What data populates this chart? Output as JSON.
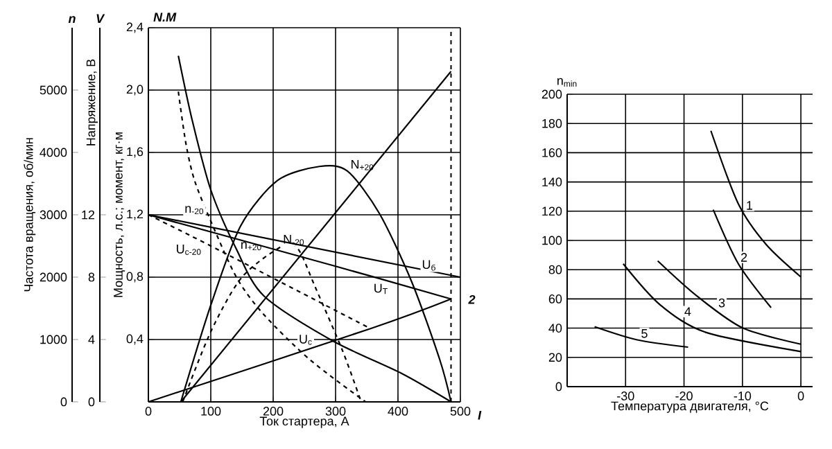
{
  "chart_data": [
    {
      "type": "line",
      "xlabel": "Ток стартера, А",
      "ylabel": "Мощность, л.с.; момент, кг·м",
      "y2label": "Частота вращения, об/мин",
      "y3label": "Напряжение, В",
      "xlim": [
        0,
        500
      ],
      "xticks": [
        0,
        100,
        200,
        300,
        400,
        500
      ],
      "ylim": [
        0,
        2.4
      ],
      "yticks": [
        {
          "value": 0.4,
          "label": "0,4"
        },
        {
          "value": 0.8,
          "label": "0,8"
        },
        {
          "value": 1.2,
          "label": "1,2"
        },
        {
          "value": 1.6,
          "label": "1,6"
        },
        {
          "value": 2.0,
          "label": "2,0"
        },
        {
          "value": 2.4,
          "label": "2,4"
        }
      ],
      "y2lim": [
        0,
        6000
      ],
      "y2ticks": [
        0,
        1000,
        2000,
        3000,
        4000,
        5000
      ],
      "y3lim": [
        0,
        24
      ],
      "y3ticks": [
        0,
        4,
        8,
        12
      ],
      "grid": true,
      "annotations": [
        "n",
        "V",
        "N.M",
        "I",
        "2"
      ],
      "ref_lines": [
        {
          "axis": "x",
          "value": 485,
          "line_style": "dashed"
        }
      ],
      "series": [
        {
          "name": "n$_{-20}$",
          "color": "#000000",
          "line_style": "dashed",
          "x": [
            48,
            60,
            74,
            100,
            141,
            185,
            259,
            348
          ],
          "values": [
            1.99,
            1.66,
            1.42,
            1.16,
            0.8,
            0.56,
            0.27,
            0
          ]
        },
        {
          "name": "n$_{+20}$",
          "color": "#000000",
          "line_style": "solid",
          "x": [
            48,
            70,
            100,
            141,
            185,
            296,
            407,
            485
          ],
          "values": [
            2.22,
            1.81,
            1.36,
            0.98,
            0.68,
            0.39,
            0.18,
            0
          ]
        },
        {
          "name": "N$_{+20}$",
          "color": "#000000",
          "line_style": "solid",
          "x": [
            52,
            100,
            148,
            207,
            274,
            319,
            370,
            422,
            467,
            485
          ],
          "values": [
            0,
            0.62,
            1.13,
            1.42,
            1.51,
            1.48,
            1.21,
            0.77,
            0.27,
            0
          ]
        },
        {
          "name": "N$_{-20}$",
          "color": "#000000",
          "line_style": "dashed",
          "x": [
            55,
            100,
            150,
            215,
            240,
            267,
            311,
            341
          ],
          "values": [
            0,
            0.45,
            0.8,
            1.0,
            0.98,
            0.74,
            0.33,
            0
          ]
        },
        {
          "color": "#000000",
          "line_style": "solid",
          "x": [
            52,
            485
          ],
          "values": [
            0,
            2.12
          ]
        },
        {
          "name": "U$_{c-20}$",
          "color": "#000000",
          "line_style": "dashed",
          "x": [
            0,
            100,
            356
          ],
          "values": [
            1.2,
            1.0,
            0.47
          ]
        },
        {
          "name": "U$_{б}$",
          "color": "#000000",
          "line_style": "solid",
          "x": [
            0,
            500
          ],
          "values": [
            1.2,
            0.8
          ]
        },
        {
          "name": "U$_{Т}$",
          "color": "#000000",
          "line_style": "solid",
          "x": [
            0,
            300,
            485
          ],
          "values": [
            1.2,
            0.87,
            0.66
          ]
        },
        {
          "name": "U$_{c}$",
          "color": "#000000",
          "line_style": "solid",
          "x": [
            0,
            356,
            485
          ],
          "values": [
            0,
            0.47,
            0.66
          ]
        }
      ]
    },
    {
      "type": "line",
      "xlabel": "Температура двигателя, °C",
      "ylabel": "n$_{min}$",
      "xlim": [
        -40,
        2
      ],
      "xticks": [
        -30,
        -20,
        -10,
        0
      ],
      "ylim": [
        0,
        200
      ],
      "yticks": [
        0,
        20,
        40,
        60,
        80,
        100,
        120,
        140,
        160,
        180,
        200
      ],
      "grid": true,
      "series": [
        {
          "name": "1",
          "color": "#000000",
          "line_style": "solid",
          "x": [
            -15.4,
            -10.7,
            -5.9,
            0
          ],
          "values": [
            175,
            125,
            97,
            75
          ]
        },
        {
          "name": "2",
          "color": "#000000",
          "line_style": "solid",
          "x": [
            -15,
            -10.7,
            -5.1
          ],
          "values": [
            121,
            84,
            54
          ]
        },
        {
          "name": "3",
          "color": "#000000",
          "line_style": "solid",
          "x": [
            -24.5,
            -17.8,
            -9.9,
            0
          ],
          "values": [
            86,
            62,
            40,
            29
          ]
        },
        {
          "name": "4",
          "color": "#000000",
          "line_style": "solid",
          "x": [
            -30.4,
            -24.1,
            -16.2,
            0
          ],
          "values": [
            84,
            56,
            37,
            24
          ]
        },
        {
          "name": "5",
          "color": "#000000",
          "line_style": "solid",
          "x": [
            -35.3,
            -28,
            -19.3
          ],
          "values": [
            41,
            32,
            27
          ]
        }
      ]
    }
  ]
}
